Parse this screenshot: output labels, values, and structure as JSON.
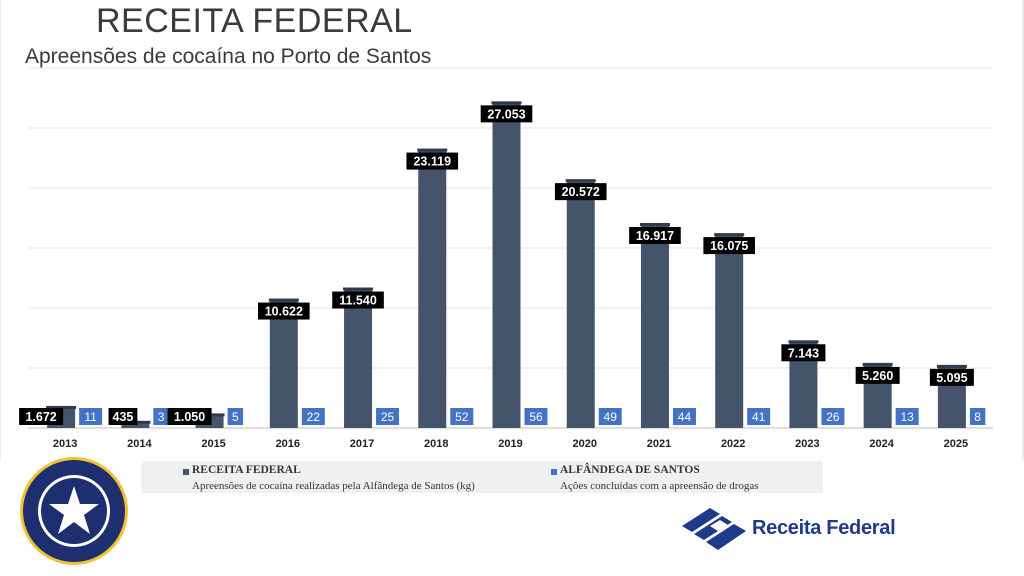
{
  "header": {
    "title": "RECEITA FEDERAL",
    "subtitle": "Apreensões de cocaína no Porto de Santos"
  },
  "legend": [
    {
      "name": "RECEITA FEDERAL",
      "description": "Apreensões de cocaína realizadas pela Alfândega de Santos (kg)",
      "color": "#44546a"
    },
    {
      "name": "ALFÂNDEGA DE SANTOS",
      "description": "Ações concluídas com a apreensão de drogas",
      "color": "#4472c4"
    }
  ],
  "logos": {
    "right_text": "Receita Federal",
    "seal_top_text": "RECEITA FEDERAL",
    "seal_ring_text": "REPÚBLICA FEDERATIVA DO BRASIL",
    "seal_bottom_text": "ADUANA - CUSTOMS"
  },
  "chart_data": {
    "type": "bar",
    "categories": [
      "2013",
      "2014",
      "2015",
      "2016",
      "2017",
      "2018",
      "2019",
      "2020",
      "2021",
      "2022",
      "2023",
      "2024",
      "2025"
    ],
    "series": [
      {
        "name": "RECEITA FEDERAL",
        "values": [
          1672,
          435,
          1050,
          10622,
          11540,
          23119,
          27053,
          20572,
          16917,
          16075,
          7143,
          5260,
          5095
        ],
        "labels": [
          "1.672",
          "435",
          "1.050",
          "10.622",
          "11.540",
          "23.119",
          "27.053",
          "20.572",
          "16.917",
          "16.075",
          "7.143",
          "5.260",
          "5.095"
        ]
      },
      {
        "name": "ALFÂNDEGA DE SANTOS",
        "values": [
          11,
          3,
          5,
          22,
          25,
          52,
          56,
          49,
          44,
          41,
          26,
          13,
          8
        ],
        "labels": [
          "11",
          "3",
          "5",
          "22",
          "25",
          "52",
          "56",
          "49",
          "44",
          "41",
          "26",
          "13",
          "8"
        ]
      }
    ],
    "ylim": [
      0,
      30000
    ],
    "grid": true,
    "legend_position": "bottom",
    "colors": {
      "bar": "#44546a",
      "count_box": "#4472c4",
      "value_box": "#000000"
    }
  }
}
